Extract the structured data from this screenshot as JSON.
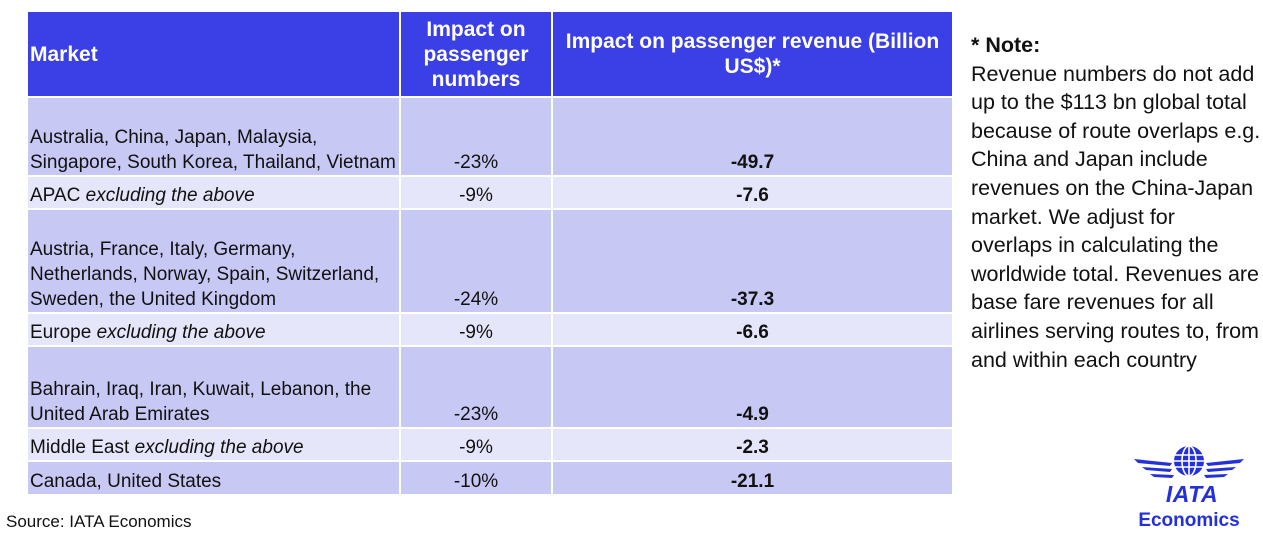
{
  "chart_data": {
    "type": "table",
    "columns": [
      "Market",
      "Impact on passenger numbers",
      "Impact on passenger revenue (Billion US$)*"
    ],
    "rows": [
      {
        "market": "Australia, China, Japan, Malaysia, Singapore, South Korea, Thailand, Vietnam",
        "market_suffix": "",
        "passengers": "-23%",
        "revenue": "-49.7"
      },
      {
        "market": "APAC",
        "market_suffix": "excluding the above",
        "passengers": "-9%",
        "revenue": "-7.6"
      },
      {
        "market": "Austria, France, Italy, Germany, Netherlands, Norway, Spain, Switzerland, Sweden, the United Kingdom",
        "market_suffix": "",
        "passengers": "-24%",
        "revenue": "-37.3"
      },
      {
        "market": "Europe",
        "market_suffix": "excluding the above",
        "passengers": "-9%",
        "revenue": "-6.6"
      },
      {
        "market": "Bahrain, Iraq, Iran, Kuwait, Lebanon, the United Arab Emirates",
        "market_suffix": "",
        "passengers": "-23%",
        "revenue": "-4.9"
      },
      {
        "market": "Middle East",
        "market_suffix": "excluding the above",
        "passengers": "-9%",
        "revenue": "-2.3"
      },
      {
        "market": "Canada, United States",
        "market_suffix": "",
        "passengers": "-10%",
        "revenue": "-21.1"
      }
    ]
  },
  "header": {
    "market": "Market",
    "passengers": "Impact on passenger numbers",
    "revenue": "Impact on passenger revenue (Billion US$)*"
  },
  "source": "Source: IATA Economics",
  "note": {
    "title": "* Note:",
    "text": "Revenue numbers do not add up to the $113 bn global total because of route overlaps e.g. China and Japan include revenues on the China-Japan market. We adjust for overlaps in calculating the worldwide total. Revenues are base fare revenues for all airlines serving routes to, from and within each country"
  },
  "logo": {
    "name": "IATA",
    "subtitle": "Economics"
  },
  "colors": {
    "header": "#3a3fe6",
    "row_dark": "#c8c8f5",
    "row_light": "#e6e6fb",
    "brand": "#2431d8"
  }
}
